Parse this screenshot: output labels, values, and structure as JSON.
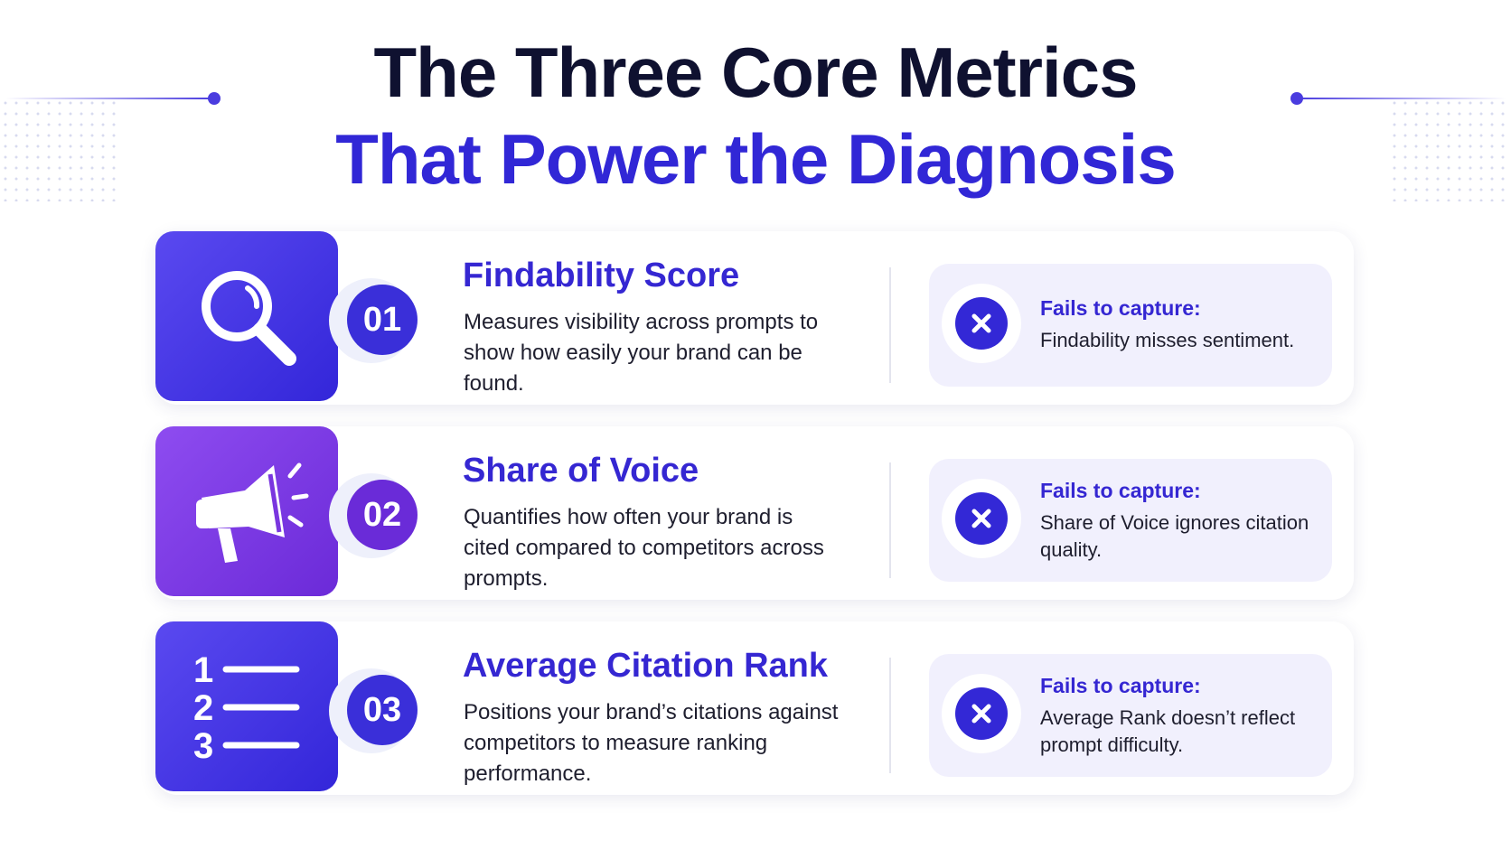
{
  "title": {
    "line1": "The Three Core Metrics",
    "line2": "That Power the Diagnosis"
  },
  "colors": {
    "title_dark": "#0f1130",
    "accent_blue": "#3527d2",
    "accent_purple": "#6a2bd8",
    "fail_panel": "#f1f0fd"
  },
  "metrics": [
    {
      "number": "01",
      "icon": "magnifying-glass-icon",
      "heading": "Findability Score",
      "description": "Measures visibility across prompts to show how easily your brand can be found.",
      "fail_label": "Fails to capture:",
      "fail_text": "Findability misses sentiment."
    },
    {
      "number": "02",
      "icon": "megaphone-icon",
      "heading": "Share of Voice",
      "description": "Quantifies how often your brand is cited compared to competitors across prompts.",
      "fail_label": "Fails to capture:",
      "fail_text": "Share of Voice ignores citation quality."
    },
    {
      "number": "03",
      "icon": "numbered-list-icon",
      "heading": "Average Citation Rank",
      "description": "Positions your brand’s citations against competitors to measure ranking performance.",
      "fail_label": "Fails to capture:",
      "fail_text": "Average Rank doesn’t reflect prompt difficulty.",
      "list_numbers": [
        "1",
        "2",
        "3"
      ]
    }
  ]
}
